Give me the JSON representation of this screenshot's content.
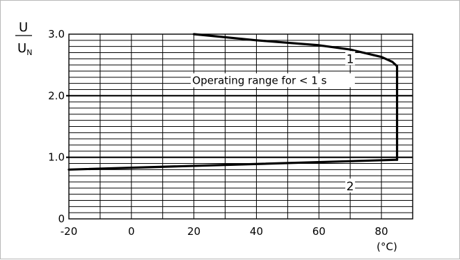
{
  "chart_data": {
    "type": "line",
    "ylabel": {
      "numerator": "U",
      "denominator": "U",
      "denominator_sub": "N"
    },
    "x_unit": "(°C)",
    "xlim": [
      -20,
      90
    ],
    "ylim": [
      0,
      3.0
    ],
    "x_ticks": [
      {
        "value": -20,
        "label": "-20"
      },
      {
        "value": 0,
        "label": "0"
      },
      {
        "value": 20,
        "label": "20"
      },
      {
        "value": 40,
        "label": "40"
      },
      {
        "value": 60,
        "label": "60"
      },
      {
        "value": 80,
        "label": "80"
      }
    ],
    "y_ticks": [
      {
        "value": 0,
        "label": "0"
      },
      {
        "value": 1.0,
        "label": "1.0"
      },
      {
        "value": 2.0,
        "label": "2.0"
      },
      {
        "value": 3.0,
        "label": "3.0"
      }
    ],
    "grid": true,
    "series": [
      {
        "name": "1",
        "points": [
          [
            20,
            3.0
          ],
          [
            40,
            2.9
          ],
          [
            60,
            2.82
          ],
          [
            70,
            2.75
          ],
          [
            80,
            2.63
          ],
          [
            83.5,
            2.55
          ],
          [
            85,
            2.48
          ],
          [
            85,
            0.96
          ]
        ]
      },
      {
        "name": "2",
        "points": [
          [
            -20,
            0.8
          ],
          [
            85,
            0.96
          ]
        ]
      }
    ],
    "annotations": [
      {
        "text": "Operating range for < 1 s"
      }
    ]
  }
}
